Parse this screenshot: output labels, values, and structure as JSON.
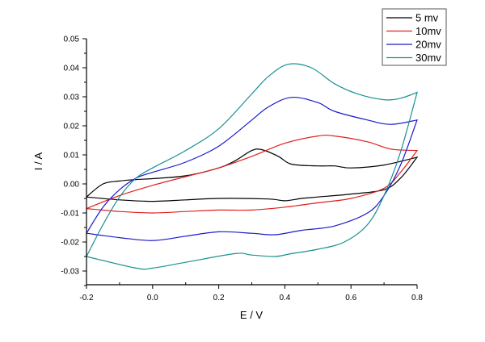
{
  "chart_data": {
    "type": "line",
    "title": "",
    "xlabel": "E / V",
    "ylabel": "I / A",
    "xlim": [
      -0.2,
      0.8
    ],
    "ylim": [
      -0.035,
      0.05
    ],
    "grid": false,
    "legend_position": "top-right",
    "x_ticks": [
      -0.2,
      0.0,
      0.2,
      0.4,
      0.6,
      0.8
    ],
    "x_tick_labels": [
      "-0.2",
      "0.0",
      "0.2",
      "0.4",
      "0.6",
      "0.8"
    ],
    "y_ticks": [
      -0.03,
      -0.02,
      -0.01,
      0.0,
      0.01,
      0.02,
      0.03,
      0.04,
      0.05
    ],
    "y_tick_labels": [
      "-0.03",
      "-0.02",
      "-0.01",
      "0.00",
      "0.01",
      "0.02",
      "0.03",
      "0.04",
      "0.05"
    ],
    "series": [
      {
        "name": "5 mv",
        "color": "#000000",
        "points": [
          [
            -0.2,
            -0.0045
          ],
          [
            -0.15,
            0.0
          ],
          [
            -0.1,
            0.001
          ],
          [
            -0.05,
            0.0015
          ],
          [
            0.0,
            0.0018
          ],
          [
            0.1,
            0.0028
          ],
          [
            0.2,
            0.0055
          ],
          [
            0.25,
            0.008
          ],
          [
            0.3,
            0.0115
          ],
          [
            0.33,
            0.0118
          ],
          [
            0.38,
            0.0095
          ],
          [
            0.42,
            0.0068
          ],
          [
            0.5,
            0.0062
          ],
          [
            0.55,
            0.0062
          ],
          [
            0.6,
            0.0055
          ],
          [
            0.7,
            0.0065
          ],
          [
            0.8,
            0.0092
          ],
          [
            0.75,
            0.002
          ],
          [
            0.7,
            -0.002
          ],
          [
            0.6,
            -0.0035
          ],
          [
            0.5,
            -0.0045
          ],
          [
            0.45,
            -0.005
          ],
          [
            0.4,
            -0.0058
          ],
          [
            0.35,
            -0.0052
          ],
          [
            0.2,
            -0.005
          ],
          [
            0.1,
            -0.0055
          ],
          [
            0.0,
            -0.006
          ],
          [
            -0.1,
            -0.0055
          ],
          [
            -0.2,
            -0.0045
          ]
        ]
      },
      {
        "name": "10mv",
        "color": "#e02020",
        "points": [
          [
            -0.2,
            -0.0085
          ],
          [
            -0.1,
            -0.004
          ],
          [
            0.0,
            -0.0005
          ],
          [
            0.1,
            0.0025
          ],
          [
            0.2,
            0.0055
          ],
          [
            0.3,
            0.0095
          ],
          [
            0.4,
            0.014
          ],
          [
            0.5,
            0.0165
          ],
          [
            0.55,
            0.0165
          ],
          [
            0.65,
            0.0145
          ],
          [
            0.72,
            0.012
          ],
          [
            0.8,
            0.0115
          ],
          [
            0.75,
            0.004
          ],
          [
            0.7,
            -0.0015
          ],
          [
            0.6,
            -0.005
          ],
          [
            0.5,
            -0.0065
          ],
          [
            0.4,
            -0.008
          ],
          [
            0.3,
            -0.009
          ],
          [
            0.2,
            -0.009
          ],
          [
            0.1,
            -0.0095
          ],
          [
            0.0,
            -0.01
          ],
          [
            -0.1,
            -0.0095
          ],
          [
            -0.2,
            -0.0085
          ]
        ]
      },
      {
        "name": "20mv",
        "color": "#1a1acc",
        "points": [
          [
            -0.2,
            -0.017
          ],
          [
            -0.15,
            -0.008
          ],
          [
            -0.1,
            -0.002
          ],
          [
            -0.05,
            0.002
          ],
          [
            0.0,
            0.004
          ],
          [
            0.1,
            0.0075
          ],
          [
            0.2,
            0.013
          ],
          [
            0.3,
            0.022
          ],
          [
            0.35,
            0.0265
          ],
          [
            0.42,
            0.0298
          ],
          [
            0.5,
            0.028
          ],
          [
            0.55,
            0.025
          ],
          [
            0.65,
            0.022
          ],
          [
            0.72,
            0.0205
          ],
          [
            0.8,
            0.022
          ],
          [
            0.75,
            0.0065
          ],
          [
            0.7,
            -0.004
          ],
          [
            0.65,
            -0.01
          ],
          [
            0.55,
            -0.0145
          ],
          [
            0.45,
            -0.016
          ],
          [
            0.37,
            -0.0175
          ],
          [
            0.3,
            -0.017
          ],
          [
            0.2,
            -0.0165
          ],
          [
            0.1,
            -0.018
          ],
          [
            0.0,
            -0.0195
          ],
          [
            -0.1,
            -0.0185
          ],
          [
            -0.2,
            -0.017
          ]
        ]
      },
      {
        "name": "30mv",
        "color": "#1a9090",
        "points": [
          [
            -0.2,
            -0.025
          ],
          [
            -0.15,
            -0.014
          ],
          [
            -0.1,
            -0.0045
          ],
          [
            -0.05,
            0.002
          ],
          [
            0.0,
            0.0055
          ],
          [
            0.1,
            0.0115
          ],
          [
            0.2,
            0.019
          ],
          [
            0.3,
            0.031
          ],
          [
            0.35,
            0.037
          ],
          [
            0.41,
            0.0412
          ],
          [
            0.48,
            0.04
          ],
          [
            0.55,
            0.0345
          ],
          [
            0.62,
            0.031
          ],
          [
            0.7,
            0.029
          ],
          [
            0.75,
            0.0295
          ],
          [
            0.8,
            0.0315
          ],
          [
            0.75,
            0.011
          ],
          [
            0.7,
            -0.004
          ],
          [
            0.65,
            -0.014
          ],
          [
            0.58,
            -0.02
          ],
          [
            0.5,
            -0.0225
          ],
          [
            0.42,
            -0.024
          ],
          [
            0.37,
            -0.025
          ],
          [
            0.3,
            -0.0245
          ],
          [
            0.25,
            -0.024
          ],
          [
            0.1,
            -0.027
          ],
          [
            0.0,
            -0.029
          ],
          [
            -0.05,
            -0.029
          ],
          [
            -0.2,
            -0.025
          ]
        ]
      }
    ]
  }
}
